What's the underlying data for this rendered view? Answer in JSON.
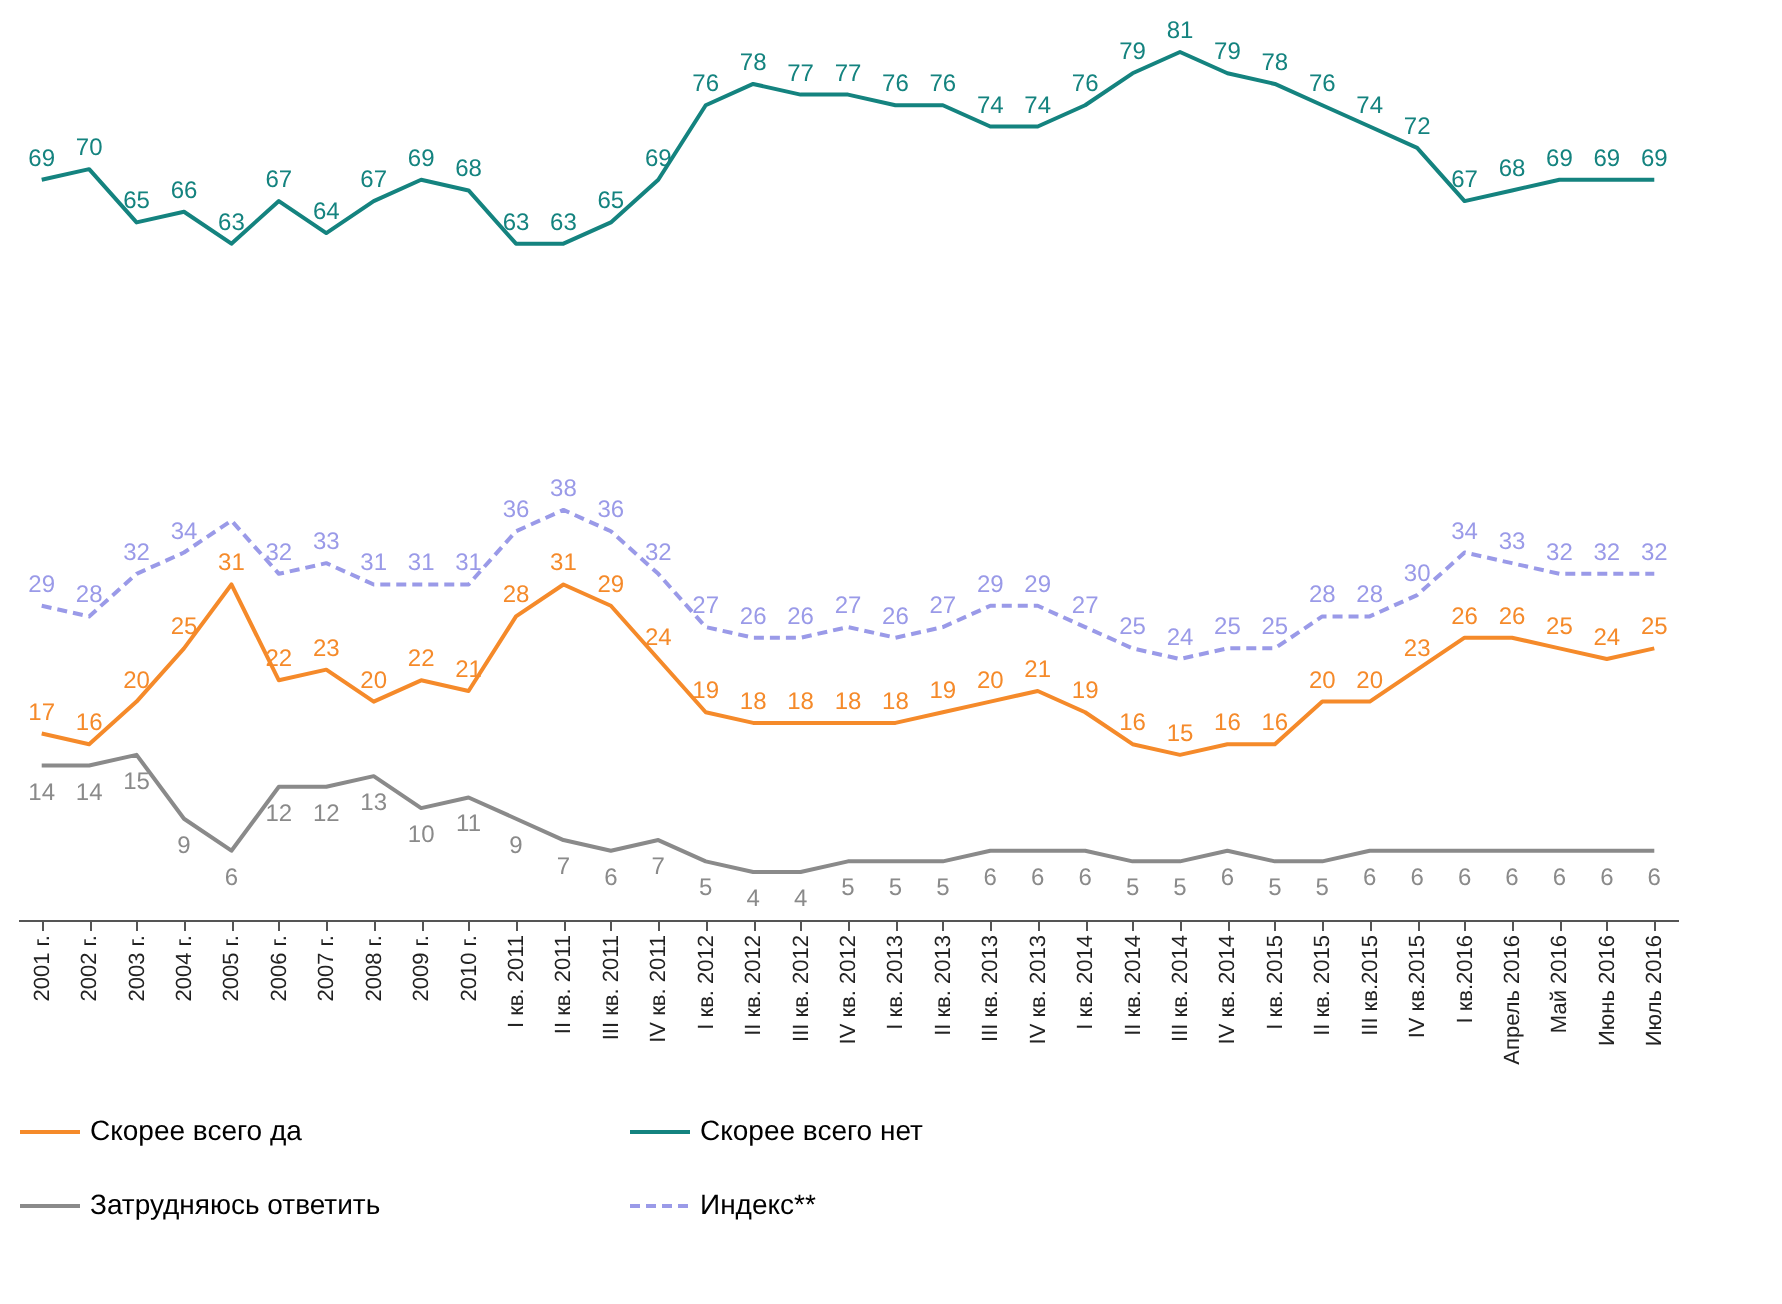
{
  "chart_data": {
    "type": "line",
    "categories": [
      "2001 г.",
      "2002 г.",
      "2003 г.",
      "2004 г.",
      "2005 г.",
      "2006 г.",
      "2007 г.",
      "2008 г.",
      "2009 г.",
      "2010 г.",
      "I кв. 2011",
      "II кв. 2011",
      "III кв. 2011",
      "IV кв. 2011",
      "I кв. 2012",
      "II кв. 2012",
      "III кв. 2012",
      "IV кв. 2012",
      "I кв. 2013",
      "II кв. 2013",
      "III кв. 2013",
      "IV кв. 2013",
      "I кв. 2014",
      "II кв. 2014",
      "III кв. 2014",
      "IV кв. 2014",
      "I кв. 2015",
      "II кв. 2015",
      "III кв.2015",
      "IV кв.2015",
      "I кв.2016",
      "Апрель 2016",
      "Май 2016",
      "Июнь 2016",
      "Июль 2016"
    ],
    "series": [
      {
        "name": "Скорее всего да",
        "color": "#f58a2a",
        "values": [
          17,
          16,
          20,
          25,
          31,
          22,
          23,
          20,
          22,
          21,
          28,
          31,
          29,
          24,
          19,
          18,
          18,
          18,
          18,
          19,
          20,
          21,
          19,
          16,
          15,
          16,
          16,
          20,
          20,
          23,
          26,
          26,
          25,
          24,
          25
        ]
      },
      {
        "name": "Скорее всего нет",
        "color": "#14837f",
        "values": [
          69,
          70,
          65,
          66,
          63,
          67,
          64,
          67,
          69,
          68,
          63,
          63,
          65,
          69,
          76,
          78,
          77,
          77,
          76,
          76,
          74,
          74,
          76,
          79,
          81,
          79,
          78,
          76,
          74,
          72,
          67,
          68,
          69,
          69,
          69
        ]
      },
      {
        "name": "Затрудняюсь ответить",
        "color": "#8a8a8a",
        "values": [
          14,
          14,
          15,
          9,
          6,
          12,
          12,
          13,
          10,
          11,
          9,
          7,
          6,
          7,
          5,
          4,
          4,
          5,
          5,
          5,
          6,
          6,
          6,
          5,
          5,
          6,
          5,
          5,
          6,
          6,
          6,
          6,
          6,
          6,
          6
        ]
      },
      {
        "name": "Индекс**",
        "color": "#9a9ae8",
        "line_style": "dashed",
        "values": [
          29,
          28,
          32,
          34,
          37,
          32,
          33,
          31,
          31,
          31,
          36,
          38,
          36,
          32,
          27,
          26,
          26,
          27,
          26,
          27,
          29,
          29,
          27,
          25,
          24,
          25,
          25,
          28,
          28,
          30,
          34,
          33,
          32,
          32,
          32
        ],
        "value_labels": [
          "29",
          "28",
          "32",
          "34",
          null,
          "32",
          "33",
          "31",
          "31",
          "31",
          "36",
          "38",
          "36",
          "32",
          "27",
          "26",
          "26",
          "27",
          "26",
          "27",
          "29",
          "29",
          "27",
          "25",
          "24",
          "25",
          "25",
          "28",
          "28",
          "30",
          "34",
          "33",
          "32",
          "32",
          "32"
        ]
      }
    ],
    "data_labels": true,
    "legend": "bottom",
    "grid": false,
    "marker": "none"
  }
}
